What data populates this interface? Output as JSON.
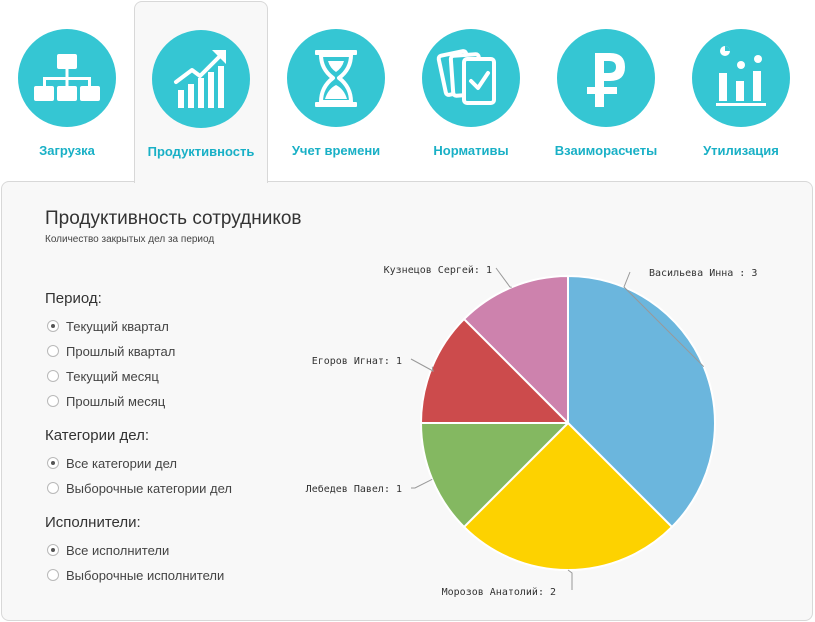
{
  "tabs": [
    {
      "label": "Загрузка",
      "icon": "hierarchy-icon",
      "active": false
    },
    {
      "label": "Продуктивность",
      "icon": "growth-chart-icon",
      "active": true
    },
    {
      "label": "Учет времени",
      "icon": "hourglass-icon",
      "active": false
    },
    {
      "label": "Нормативы",
      "icon": "cards-check-icon",
      "active": false
    },
    {
      "label": "Взаиморасчеты",
      "icon": "ruble-icon",
      "active": false
    },
    {
      "label": "Утилизация",
      "icon": "utilization-icon",
      "active": false
    }
  ],
  "colors": {
    "accent": "#35c6d3",
    "tab_label": "#19b0c6",
    "panel_bg": "#f8f8f8",
    "border": "#d8d8d8"
  },
  "panel": {
    "title": "Продуктивность сотрудников",
    "subtitle": "Количество закрытых дел за период",
    "period": {
      "title": "Период:",
      "options": [
        {
          "label": "Текущий квартал",
          "checked": true
        },
        {
          "label": "Прошлый квартал",
          "checked": false
        },
        {
          "label": "Текущий месяц",
          "checked": false
        },
        {
          "label": "Прошлый месяц",
          "checked": false
        }
      ]
    },
    "categories": {
      "title": "Категории дел:",
      "options": [
        {
          "label": "Все категории дел",
          "checked": true
        },
        {
          "label": "Выборочные категории дел",
          "checked": false
        }
      ]
    },
    "executors": {
      "title": "Исполнители:",
      "options": [
        {
          "label": "Все исполнители",
          "checked": true
        },
        {
          "label": "Выборочные исполнители",
          "checked": false
        }
      ]
    }
  },
  "chart_data": {
    "type": "pie",
    "title": "Продуктивность сотрудников",
    "subtitle": "Количество закрытых дел за период",
    "slices": [
      {
        "name": "Васильева Инна",
        "value": 3,
        "label": "Васильева Инна : 3",
        "color": "#6bb6dd"
      },
      {
        "name": "Морозов Анатолий",
        "value": 2,
        "label": "Морозов Анатолий: 2",
        "color": "#fdd200"
      },
      {
        "name": "Лебедев Павел",
        "value": 1,
        "label": "Лебедев Павел: 1",
        "color": "#84b861"
      },
      {
        "name": "Егоров Игнат",
        "value": 1,
        "label": "Егоров Игнат: 1",
        "color": "#cc4b4c"
      },
      {
        "name": "Кузнецов Сергей",
        "value": 1,
        "label": "Кузнецов Сергей: 1",
        "color": "#cd82ad"
      }
    ]
  }
}
